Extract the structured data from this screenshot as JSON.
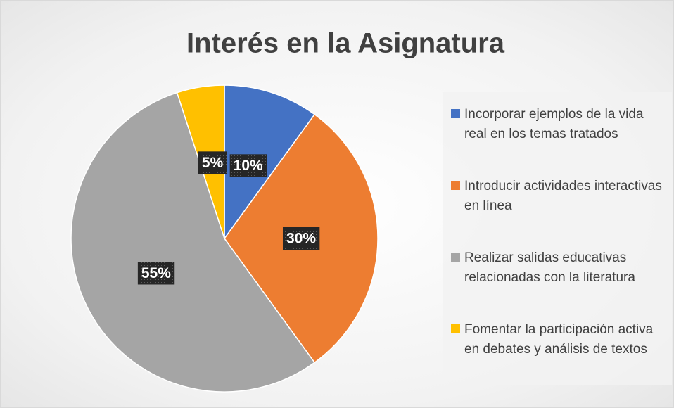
{
  "chart_data": {
    "type": "pie",
    "title": "Interés en la Asignatura",
    "categories": [
      "Incorporar ejemplos de la vida real en los temas tratados",
      "Introducir actividades interactivas en línea",
      "Realizar salidas educativas relacionadas con la literatura",
      "Fomentar la participación activa en debates y análisis de textos"
    ],
    "values": [
      10,
      30,
      55,
      5
    ],
    "value_labels": [
      "10%",
      "30%",
      "55%",
      "5%"
    ],
    "colors": [
      "#4472c4",
      "#ed7d31",
      "#a5a5a5",
      "#ffc000"
    ],
    "legend": "right"
  }
}
